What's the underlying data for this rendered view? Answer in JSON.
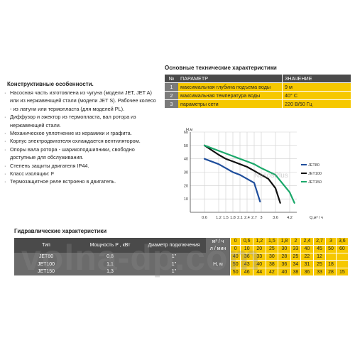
{
  "features": {
    "title": "Конструктивные особенности.",
    "items": [
      "Насосная часть изготовлена из чугуна (модели JET, JET A) или из нержавеющей стали (модели JET S). Рабочее колесо - из латуни или термопласта (для моделей PL).",
      "Диффузор и эжектор из термопласта, вал ротора из нержавеющей стали.",
      "Механическое уплотнение из керамики и графита.",
      "Корпус электродвигателя охлаждается вентилятором.",
      "Опоры вала ротора - шарикоподшипники, свободно доступные для обслуживания.",
      "Степень защиты двигателя IP44.",
      "Класс изоляции: F",
      "Термозащитное реле встроено в двигатель."
    ],
    "bullet": "·"
  },
  "specs": {
    "title": "Основные технические характеристики",
    "headers": {
      "num": "№",
      "param": "ПАРАМЕТР",
      "value": "ЗНАЧЕНИЕ"
    },
    "rows": [
      {
        "num": "1",
        "param": "максимальная глубина подъема воды",
        "value": "9 м"
      },
      {
        "num": "2",
        "param": "максимальная температура воды",
        "value": "40° С"
      },
      {
        "num": "3",
        "param": "параметры сети",
        "value": "220 В/50 Гц"
      }
    ]
  },
  "chart_data": {
    "type": "line",
    "xlabel": "Q,м³ / ч",
    "ylabel": "Н,м",
    "xlim": [
      0,
      4.5
    ],
    "ylim": [
      0,
      60
    ],
    "xticks": [
      "0.6",
      "1.2",
      "1.5",
      "1.8",
      "2.1",
      "2.4",
      "2.7",
      "3",
      "3.6",
      "4.2"
    ],
    "xtick_values": [
      0.6,
      1.2,
      1.5,
      1.8,
      2.1,
      2.4,
      2.7,
      3.0,
      3.6,
      4.2
    ],
    "yticks": [
      "10",
      "20",
      "30",
      "40",
      "50",
      "60"
    ],
    "ytick_values": [
      10,
      20,
      30,
      40,
      50,
      60
    ],
    "grid": true,
    "legend_position": "right",
    "series": [
      {
        "name": "JET80",
        "color": "#1f4e9c",
        "x": [
          0.6,
          1.2,
          1.5,
          1.8,
          2.1,
          2.4,
          2.7,
          2.95
        ],
        "y": [
          40,
          36,
          33,
          30,
          28,
          25,
          22,
          8
        ]
      },
      {
        "name": "JET100",
        "color": "#111111",
        "x": [
          0.6,
          1.2,
          1.5,
          1.8,
          2.1,
          2.4,
          2.7,
          3.0,
          3.3,
          3.6,
          3.8
        ],
        "y": [
          50,
          43,
          40,
          38,
          36,
          34,
          31,
          28,
          25,
          18,
          7
        ]
      },
      {
        "name": "JET150",
        "color": "#1aa86a",
        "x": [
          0.6,
          1.2,
          1.5,
          1.8,
          2.1,
          2.4,
          2.7,
          3.0,
          3.6,
          4.2,
          4.4
        ],
        "y": [
          50,
          46,
          44,
          42,
          40,
          38,
          36,
          33,
          28,
          15,
          7
        ]
      }
    ]
  },
  "hydraulic": {
    "title": "Гидравлические характеристики",
    "col_type": "Тип",
    "col_power": "Мощность Р , кВт",
    "col_conn": "Диаметр подключения",
    "unit_flow_m3": "м³ / ч",
    "unit_flow_lmin": "л / мин",
    "unit_head": "Н, м",
    "flow_m3": [
      "0",
      "0,6",
      "1,2",
      "1,5",
      "1,8",
      "2",
      "2,4",
      "2,7",
      "3",
      "3,6"
    ],
    "flow_lmin": [
      "0",
      "10",
      "20",
      "25",
      "30",
      "33",
      "40",
      "45",
      "50",
      "60"
    ],
    "rows": [
      {
        "type": "JET80",
        "power": "0,8",
        "conn": "1\"",
        "head": [
          "40",
          "36",
          "33",
          "30",
          "28",
          "25",
          "22",
          "12",
          "",
          ""
        ]
      },
      {
        "type": "JET100",
        "power": "1,1",
        "conn": "1\"",
        "head": [
          "50",
          "43",
          "40",
          "38",
          "36",
          "34",
          "31",
          "25",
          "18",
          ""
        ]
      },
      {
        "type": "JET150",
        "power": "1,3",
        "conn": "1\"",
        "head": [
          "50",
          "46",
          "44",
          "42",
          "40",
          "38",
          "36",
          "33",
          "28",
          "15"
        ]
      }
    ]
  },
  "watermarks": {
    "main": "volna-dp.com",
    "small": "NasosPlus"
  }
}
